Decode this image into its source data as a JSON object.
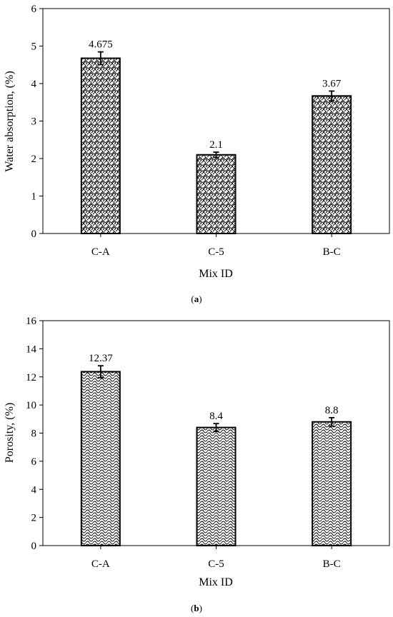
{
  "chart_data": [
    {
      "type": "bar",
      "panel_label": "(a)",
      "panel_letter": "a",
      "xlabel": "Mix ID",
      "ylabel": "Water absorption, (%)",
      "categories": [
        "C-A",
        "C-5",
        "B-C"
      ],
      "values": [
        4.675,
        2.1,
        3.67
      ],
      "value_labels": [
        "4.675",
        "2.1",
        "3.67"
      ],
      "error": [
        0.17,
        0.07,
        0.13
      ],
      "ylim": [
        0,
        6
      ],
      "yticks": [
        0,
        1,
        2,
        3,
        4,
        5,
        6
      ],
      "grid": false,
      "bar_pattern": "brick-hatch"
    },
    {
      "type": "bar",
      "panel_label": "(b)",
      "panel_letter": "b",
      "xlabel": "Mix ID",
      "ylabel": "Porosity, (%)",
      "categories": [
        "C-A",
        "C-5",
        "B-C"
      ],
      "values": [
        12.37,
        8.4,
        8.8
      ],
      "value_labels": [
        "12.37",
        "8.4",
        "8.8"
      ],
      "error": [
        0.42,
        0.28,
        0.3
      ],
      "ylim": [
        0,
        16
      ],
      "yticks": [
        0,
        2,
        4,
        6,
        8,
        10,
        12,
        14,
        16
      ],
      "grid": false,
      "bar_pattern": "scale-hatch"
    }
  ]
}
